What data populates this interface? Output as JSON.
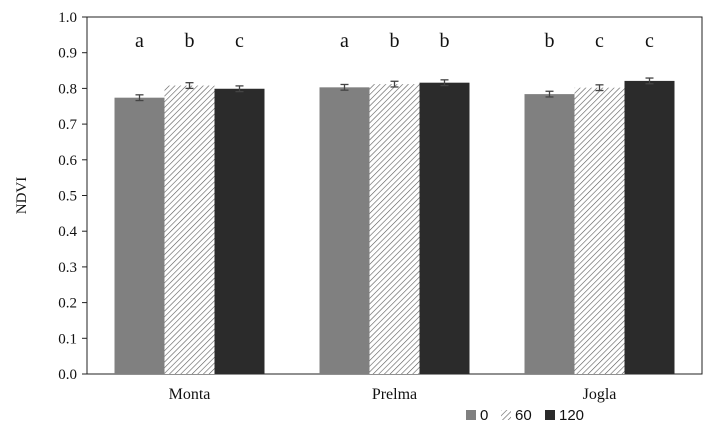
{
  "chart_data": {
    "type": "bar",
    "title": "",
    "xlabel": "",
    "ylabel": "NDVI",
    "ylim": [
      0.0,
      1.0
    ],
    "yticks": [
      "0.0",
      "0.1",
      "0.2",
      "0.3",
      "0.4",
      "0.5",
      "0.6",
      "0.7",
      "0.8",
      "0.9",
      "1.0"
    ],
    "categories": [
      "Monta",
      "Prelma",
      "Jogla"
    ],
    "series": [
      {
        "name": "0",
        "values": [
          0.774,
          0.803,
          0.784
        ],
        "errors": [
          0.008,
          0.008,
          0.008
        ],
        "letters": [
          "a",
          "a",
          "b"
        ],
        "color": "#808080",
        "pattern": "solid"
      },
      {
        "name": "60",
        "values": [
          0.808,
          0.812,
          0.802
        ],
        "errors": [
          0.008,
          0.008,
          0.008
        ],
        "letters": [
          "b",
          "b",
          "c"
        ],
        "color": "#ffffff",
        "pattern": "hatched"
      },
      {
        "name": "120",
        "values": [
          0.799,
          0.816,
          0.821
        ],
        "errors": [
          0.008,
          0.008,
          0.008
        ],
        "letters": [
          "c",
          "b",
          "c"
        ],
        "color": "#2b2b2b",
        "pattern": "solid"
      }
    ],
    "grid": false,
    "legend_position": "bottom-right",
    "error_bar_color": "#444444"
  }
}
